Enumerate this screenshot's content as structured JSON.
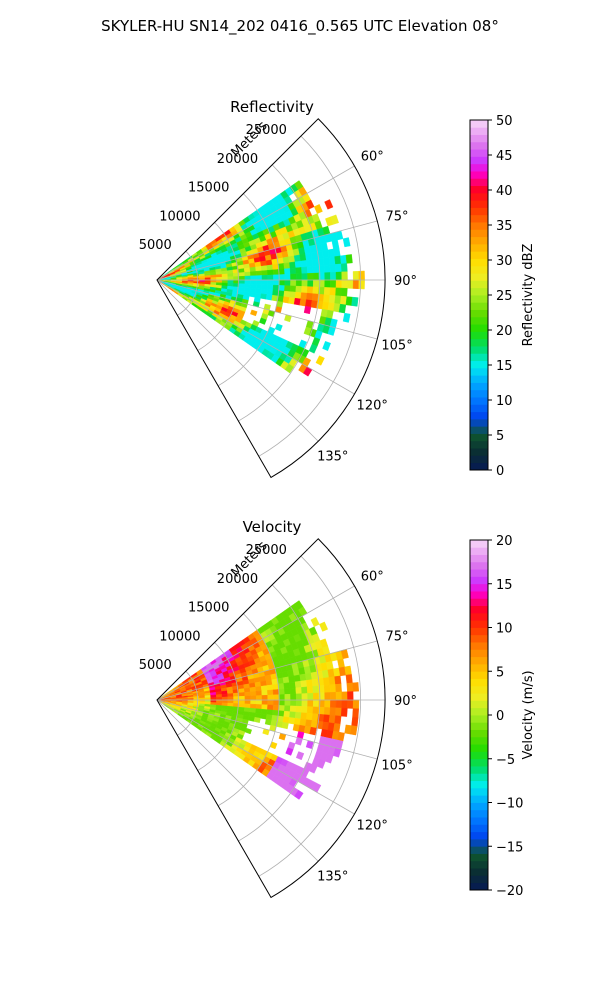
{
  "figure_title": "SKYLER-HU  SN14_202  0416_0.565 UTC Elevation 08°",
  "chart_data": [
    {
      "type": "heatmap",
      "projection": "polar-sector",
      "title": "Reflectivity",
      "range_label": "Meters",
      "range_ticks": [
        5000,
        10000,
        15000,
        20000,
        25000
      ],
      "range_tick_labels": [
        "5000",
        "10000",
        "15000",
        "20000",
        "25000"
      ],
      "range_max": 28000,
      "azimuth_range": [
        45,
        150
      ],
      "azimuth_ticks": [
        60,
        75,
        90,
        105,
        120,
        135
      ],
      "azimuth_tick_labels": [
        "60°",
        "75°",
        "90°",
        "105°",
        "120°",
        "135°"
      ],
      "grid": true,
      "colorbar": {
        "label": "Reflectivity dBZ",
        "min": 0,
        "max": 50,
        "ticks": [
          0,
          5,
          10,
          15,
          20,
          25,
          30,
          35,
          40,
          45,
          50
        ],
        "tick_labels": [
          "0",
          "5",
          "10",
          "15",
          "20",
          "25",
          "30",
          "35",
          "40",
          "45",
          "50"
        ]
      },
      "data_extent": {
        "azimuth_deg": [
          55,
          125
        ],
        "range_m": [
          0,
          26000
        ],
        "value_min": 15,
        "value_max": 45
      }
    },
    {
      "type": "heatmap",
      "projection": "polar-sector",
      "title": "Velocity",
      "range_label": "Meters",
      "range_ticks": [
        5000,
        10000,
        15000,
        20000,
        25000
      ],
      "range_tick_labels": [
        "5000",
        "10000",
        "15000",
        "20000",
        "25000"
      ],
      "range_max": 28000,
      "azimuth_range": [
        45,
        150
      ],
      "azimuth_ticks": [
        60,
        75,
        90,
        105,
        120,
        135
      ],
      "azimuth_tick_labels": [
        "60°",
        "75°",
        "90°",
        "105°",
        "120°",
        "135°"
      ],
      "grid": true,
      "colorbar": {
        "label": "Velocity (m/s)",
        "min": -20,
        "max": 20,
        "ticks": [
          -20,
          -15,
          -10,
          -5,
          0,
          5,
          10,
          15,
          20
        ],
        "tick_labels": [
          "−20",
          "−15",
          "−10",
          "−5",
          "0",
          "5",
          "10",
          "15",
          "20"
        ]
      },
      "data_extent": {
        "azimuth_deg": [
          55,
          125
        ],
        "range_m": [
          0,
          26000
        ],
        "value_min": -2,
        "value_max": 17
      }
    }
  ]
}
